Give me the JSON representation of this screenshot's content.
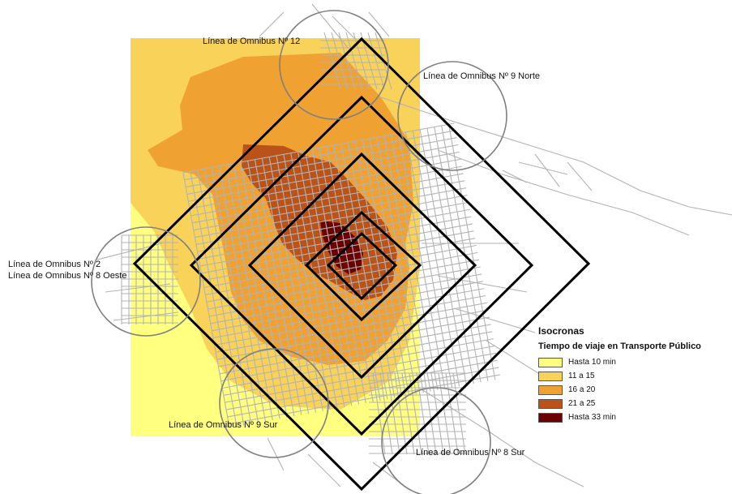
{
  "route_labels": {
    "line12": "Línea de Omnibus Nº 12",
    "line9n": "Línea de Omnibus Nº 9 Norte",
    "line2": "Línea de Omnibus Nº 2",
    "line8o": "Línea de Omnibus Nº 8 Oeste",
    "line9s": "Línea de Omnibus Nº 9 Sur",
    "line8s": "Línea de Omnibus Nº 8 Sur"
  },
  "legend": {
    "title": "Isocronas",
    "subtitle": "Tiempo de viaje en Transporte Público",
    "items": [
      {
        "label": "Hasta 10 min",
        "color": "#ffff80"
      },
      {
        "label": "11 a 15",
        "color": "#f9d25a"
      },
      {
        "label": "16 a 20",
        "color": "#efa232"
      },
      {
        "label": "21 a 25",
        "color": "#b9531a"
      },
      {
        "label": "Hasta 33 min",
        "color": "#6b0000"
      }
    ]
  },
  "colors": {
    "street": "#b3b3b3",
    "ring": "#000000",
    "circle": "#808080"
  }
}
